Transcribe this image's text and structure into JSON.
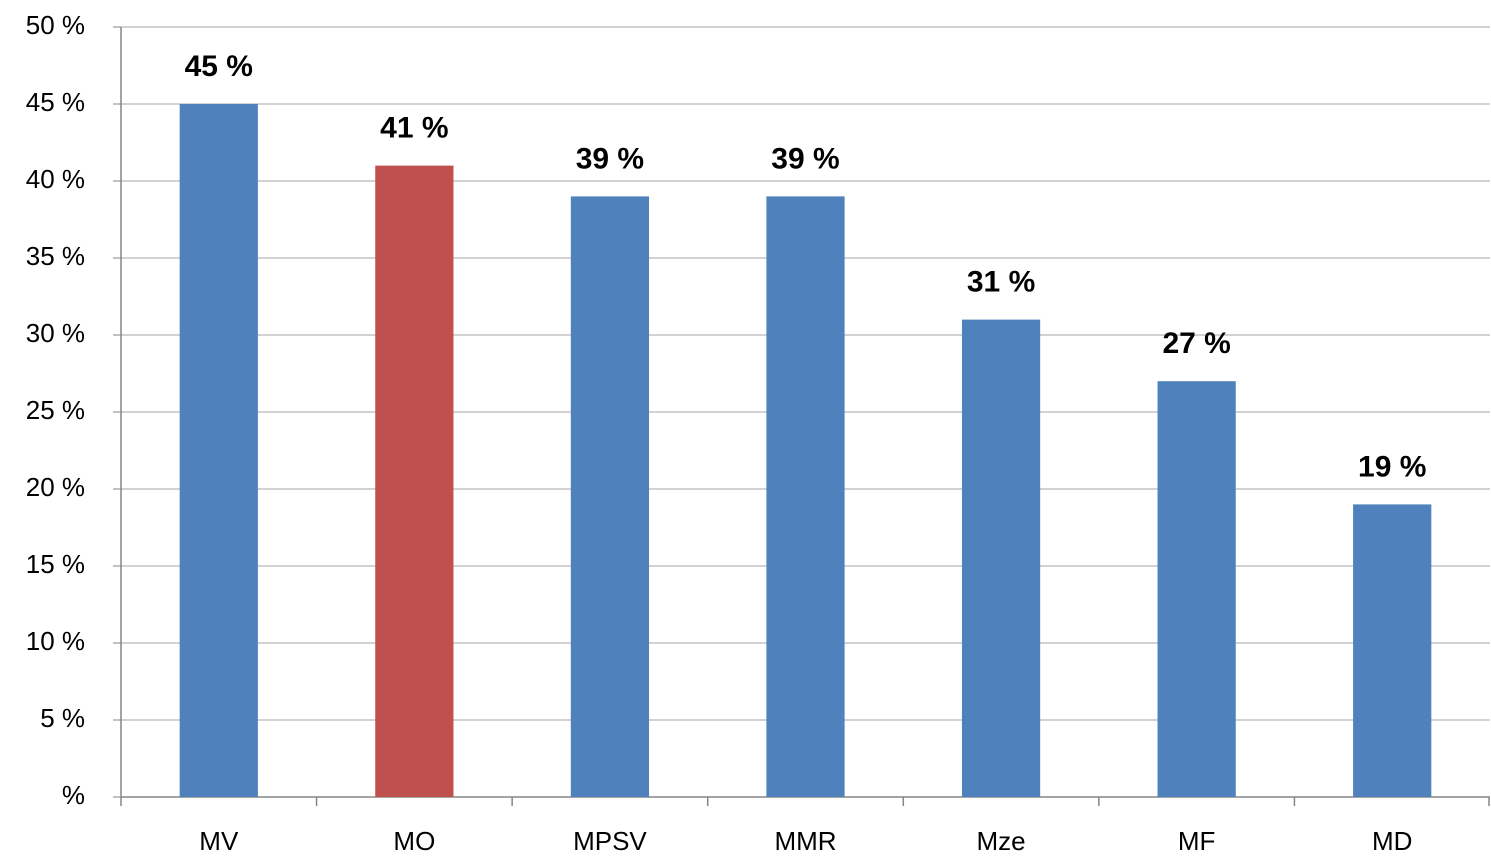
{
  "chart_data": {
    "type": "bar",
    "categories": [
      "MV",
      "MO",
      "MPSV",
      "MMR",
      "Mze",
      "MF",
      "MD"
    ],
    "values": [
      45,
      41,
      39,
      39,
      31,
      27,
      19
    ],
    "value_labels": [
      "45 %",
      "41 %",
      "39 %",
      "39 %",
      "31 %",
      "27 %",
      "19 %"
    ],
    "colors": [
      "#4f81bd",
      "#c0504d",
      "#4f81bd",
      "#4f81bd",
      "#4f81bd",
      "#4f81bd",
      "#4f81bd"
    ],
    "ylim": [
      0,
      50
    ],
    "yticks": [
      {
        "value": 0,
        "label": "%"
      },
      {
        "value": 5,
        "label": "5 %"
      },
      {
        "value": 10,
        "label": "10 %"
      },
      {
        "value": 15,
        "label": "15 %"
      },
      {
        "value": 20,
        "label": "20 %"
      },
      {
        "value": 25,
        "label": "25 %"
      },
      {
        "value": 30,
        "label": "30 %"
      },
      {
        "value": 35,
        "label": "35 %"
      },
      {
        "value": 40,
        "label": "40 %"
      },
      {
        "value": 45,
        "label": "45 %"
      },
      {
        "value": 50,
        "label": "50 %"
      }
    ],
    "grid": true
  }
}
